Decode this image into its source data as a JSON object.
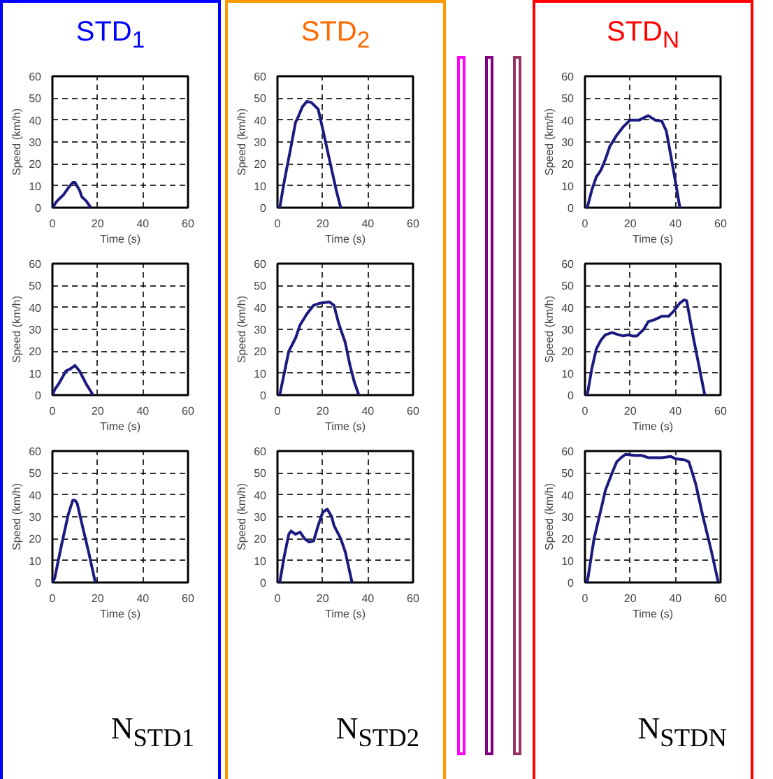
{
  "chart_data": [
    {
      "type": "line",
      "title": "STD$_{1}$",
      "xlabel": "Time (s)",
      "ylabel": "Speed (km/h)",
      "xlim": [
        0,
        60
      ],
      "ylim": [
        0,
        60
      ],
      "xticks": [
        0,
        20,
        40,
        60
      ],
      "yticks": [
        0,
        10,
        20,
        30,
        40,
        50,
        60
      ],
      "grid": true,
      "line_style": "solid",
      "series": [
        {
          "color": "#1a1a80",
          "x": [
            0,
            2,
            5,
            7,
            9,
            10,
            12,
            13,
            15,
            17
          ],
          "values": [
            0,
            3,
            6,
            9,
            11.5,
            11.5,
            8,
            5,
            3,
            0
          ]
        }
      ]
    },
    {
      "type": "line",
      "xlabel": "Time (s)",
      "ylabel": "Speed (km/h)",
      "xlim": [
        0,
        60
      ],
      "ylim": [
        0,
        60
      ],
      "xticks": [
        0,
        20,
        40,
        60
      ],
      "yticks": [
        0,
        10,
        20,
        30,
        40,
        50,
        60
      ],
      "grid": true,
      "line_style": "solid",
      "series": [
        {
          "color": "#1a1a80",
          "x": [
            0,
            1,
            3,
            6,
            8,
            10,
            12,
            15,
            18
          ],
          "values": [
            0,
            2.5,
            5.5,
            11,
            12,
            13.5,
            11,
            5,
            0
          ]
        }
      ]
    },
    {
      "type": "line",
      "xlabel": "Time (s)",
      "ylabel": "Speed (km/h)",
      "xlim": [
        0,
        60
      ],
      "ylim": [
        0,
        60
      ],
      "xticks": [
        0,
        20,
        40,
        60
      ],
      "yticks": [
        0,
        10,
        20,
        30,
        40,
        50,
        60
      ],
      "grid": true,
      "line_style": "solid",
      "annotations": [
        "N$_{STD1}$"
      ],
      "series": [
        {
          "color": "#1a1a80",
          "x": [
            0,
            1,
            4,
            7,
            9,
            10,
            11,
            13,
            16,
            19
          ],
          "values": [
            0,
            2,
            17,
            31,
            37.5,
            37.5,
            36,
            27,
            14,
            0
          ]
        }
      ]
    },
    {
      "type": "line",
      "title": "STD$_{2}$",
      "xlabel": "Time (s)",
      "ylabel": "Speed (km/h)",
      "xlim": [
        0,
        60
      ],
      "ylim": [
        0,
        60
      ],
      "xticks": [
        0,
        20,
        40,
        60
      ],
      "yticks": [
        0,
        10,
        20,
        30,
        40,
        50,
        60
      ],
      "grid": true,
      "line_style": "solid",
      "series": [
        {
          "color": "#1a1a80",
          "x": [
            0,
            1,
            3,
            6,
            8,
            9,
            11,
            13,
            15,
            18,
            20,
            23,
            26,
            28
          ],
          "values": [
            0,
            0,
            12,
            28,
            39,
            41,
            46,
            48.5,
            48,
            45,
            36,
            22,
            8,
            0
          ]
        }
      ]
    },
    {
      "type": "line",
      "xlabel": "Time (s)",
      "ylabel": "Speed (km/h)",
      "xlim": [
        0,
        60
      ],
      "ylim": [
        0,
        60
      ],
      "xticks": [
        0,
        20,
        40,
        60
      ],
      "yticks": [
        0,
        10,
        20,
        30,
        40,
        50,
        60
      ],
      "grid": true,
      "line_style": "solid",
      "series": [
        {
          "color": "#1a1a80",
          "x": [
            0,
            1,
            3,
            5,
            8,
            10,
            13,
            16,
            19,
            23,
            25,
            27,
            30,
            32,
            34,
            36
          ],
          "values": [
            0,
            0,
            10,
            20,
            26,
            32,
            37,
            41,
            42,
            42.5,
            41,
            33,
            24,
            14,
            6,
            0
          ]
        }
      ]
    },
    {
      "type": "line",
      "xlabel": "Time (s)",
      "ylabel": "Speed (km/h)",
      "xlim": [
        0,
        60
      ],
      "ylim": [
        0,
        60
      ],
      "xticks": [
        0,
        20,
        40,
        60
      ],
      "yticks": [
        0,
        10,
        20,
        30,
        40,
        50,
        60
      ],
      "grid": true,
      "line_style": "solid",
      "annotations": [
        "N$_{STD2}$"
      ],
      "series": [
        {
          "color": "#1a1a80",
          "x": [
            0,
            1,
            3,
            5,
            6,
            8,
            10,
            12,
            14,
            16,
            18,
            20,
            22,
            24,
            25,
            28,
            30,
            33
          ],
          "values": [
            0,
            0,
            12,
            22,
            23.5,
            22,
            23,
            20,
            18.5,
            19,
            26,
            32,
            33.5,
            30,
            26,
            20,
            14,
            0
          ]
        }
      ]
    },
    {
      "type": "line",
      "title": "STD$_{N}$",
      "xlabel": "Time (s)",
      "ylabel": "Speed (km/h)",
      "xlim": [
        0,
        60
      ],
      "ylim": [
        0,
        60
      ],
      "xticks": [
        0,
        20,
        40,
        60
      ],
      "yticks": [
        0,
        10,
        20,
        30,
        40,
        50,
        60
      ],
      "grid": true,
      "line_style": "solid",
      "series": [
        {
          "color": "#1a1a80",
          "x": [
            0,
            1,
            3,
            5,
            7,
            9,
            11,
            14,
            17,
            20,
            24,
            28,
            31,
            34,
            36,
            39,
            42
          ],
          "values": [
            0,
            0,
            8,
            14,
            17,
            22,
            28,
            33,
            37,
            40,
            40,
            42,
            40,
            39.5,
            35,
            18,
            0
          ]
        }
      ]
    },
    {
      "type": "line",
      "xlabel": "Time (s)",
      "ylabel": "Speed (km/h)",
      "xlim": [
        0,
        60
      ],
      "ylim": [
        0,
        60
      ],
      "xticks": [
        0,
        20,
        40,
        60
      ],
      "yticks": [
        0,
        10,
        20,
        30,
        40,
        50,
        60
      ],
      "grid": true,
      "line_style": "solid",
      "series": [
        {
          "color": "#1a1a80",
          "x": [
            0,
            1,
            3,
            5,
            7,
            9,
            12,
            15,
            17,
            19,
            21,
            23,
            26,
            28,
            31,
            34,
            37,
            39,
            42,
            44,
            45,
            48,
            53
          ],
          "values": [
            0,
            0,
            12,
            21,
            25,
            27.5,
            28.5,
            27.5,
            27,
            27.5,
            27,
            27,
            30,
            33.5,
            34.5,
            36,
            36,
            38,
            42,
            43.5,
            43,
            26,
            0
          ]
        }
      ]
    },
    {
      "type": "line",
      "xlabel": "Time (s)",
      "ylabel": "Speed (km/h)",
      "xlim": [
        0,
        60
      ],
      "ylim": [
        0,
        60
      ],
      "xticks": [
        0,
        20,
        40,
        60
      ],
      "yticks": [
        0,
        10,
        20,
        30,
        40,
        50,
        60
      ],
      "grid": true,
      "line_style": "solid",
      "annotations": [
        "N$_{STDN}$"
      ],
      "series": [
        {
          "color": "#1a1a80",
          "x": [
            0,
            1,
            4,
            7,
            9,
            12,
            14,
            16,
            18,
            22,
            25,
            28,
            34,
            38,
            40,
            44,
            46,
            49,
            52,
            56,
            59
          ],
          "values": [
            0,
            0,
            20,
            33,
            42,
            50,
            55,
            57,
            58.5,
            58,
            58,
            57,
            57,
            57.5,
            56.5,
            56,
            55,
            45,
            31,
            14,
            0
          ]
        }
      ]
    }
  ]
}
